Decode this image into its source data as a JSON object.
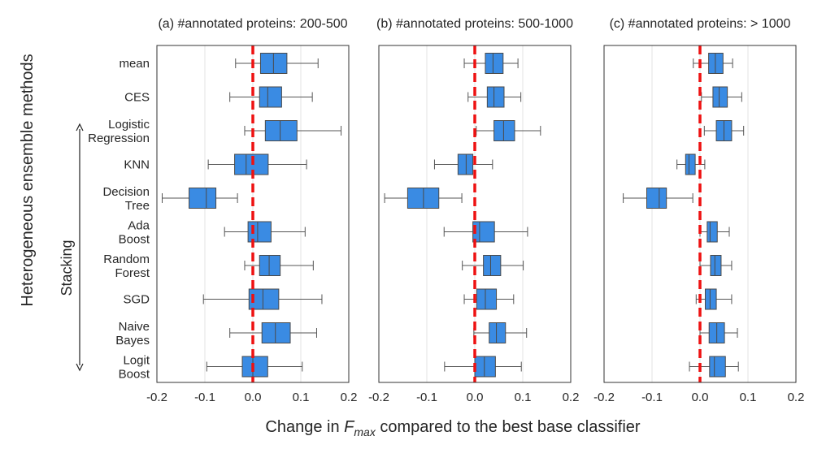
{
  "chart_data": {
    "type": "box",
    "colors": {
      "box": "#3a8be3",
      "reference_line": "#ee1111"
    },
    "ylabel": "Heterogeneous ensemble methods",
    "xlabel": {
      "pre": "Change in ",
      "var": "F",
      "sub": "max",
      "post": " compared to the best base classifier"
    },
    "group_label": "Stacking",
    "categories": [
      [
        "mean"
      ],
      [
        "CES"
      ],
      [
        "Logistic",
        "Regression"
      ],
      [
        "KNN"
      ],
      [
        "Decision",
        "Tree"
      ],
      [
        "Ada",
        "Boost"
      ],
      [
        "Random",
        "Forest"
      ],
      [
        "SGD"
      ],
      [
        "Naive",
        "Bayes"
      ],
      [
        "Logit",
        "Boost"
      ]
    ],
    "xlim": [
      -0.2,
      0.2
    ],
    "xticks": [
      -0.2,
      -0.1,
      0.0,
      0.1,
      0.2
    ],
    "xtick_labels": [
      "-0.2",
      "-0.1",
      "0.0",
      "0.1",
      "0.2"
    ],
    "reference_x": 0.0,
    "grid": "vertical",
    "panels": [
      {
        "title": "(a) #annotated proteins: 200-500",
        "boxes": [
          {
            "min": -0.036,
            "q1": 0.016,
            "median": 0.043,
            "q3": 0.071,
            "max": 0.136
          },
          {
            "min": -0.048,
            "q1": 0.014,
            "median": 0.031,
            "q3": 0.06,
            "max": 0.124
          },
          {
            "min": -0.017,
            "q1": 0.026,
            "median": 0.057,
            "q3": 0.092,
            "max": 0.184
          },
          {
            "min": -0.093,
            "q1": -0.038,
            "median": -0.014,
            "q3": 0.032,
            "max": 0.112
          },
          {
            "min": -0.189,
            "q1": -0.133,
            "median": -0.097,
            "q3": -0.077,
            "max": -0.032
          },
          {
            "min": -0.059,
            "q1": -0.01,
            "median": 0.01,
            "q3": 0.038,
            "max": 0.109
          },
          {
            "min": -0.017,
            "q1": 0.014,
            "median": 0.034,
            "q3": 0.057,
            "max": 0.126
          },
          {
            "min": -0.103,
            "q1": -0.008,
            "median": 0.021,
            "q3": 0.054,
            "max": 0.144
          },
          {
            "min": -0.048,
            "q1": 0.019,
            "median": 0.047,
            "q3": 0.078,
            "max": 0.133
          },
          {
            "min": -0.096,
            "q1": -0.022,
            "median": 0.0,
            "q3": 0.031,
            "max": 0.103
          }
        ]
      },
      {
        "title": "(b) #annotated proteins: 500-1000",
        "boxes": [
          {
            "min": -0.022,
            "q1": 0.022,
            "median": 0.038,
            "q3": 0.059,
            "max": 0.09
          },
          {
            "min": -0.014,
            "q1": 0.026,
            "median": 0.04,
            "q3": 0.061,
            "max": 0.096
          },
          {
            "min": 0.003,
            "q1": 0.04,
            "median": 0.06,
            "q3": 0.083,
            "max": 0.137
          },
          {
            "min": -0.084,
            "q1": -0.035,
            "median": -0.018,
            "q3": -0.004,
            "max": 0.037
          },
          {
            "min": -0.188,
            "q1": -0.14,
            "median": -0.107,
            "q3": -0.075,
            "max": -0.027
          },
          {
            "min": -0.064,
            "q1": -0.004,
            "median": 0.01,
            "q3": 0.041,
            "max": 0.11
          },
          {
            "min": -0.026,
            "q1": 0.018,
            "median": 0.033,
            "q3": 0.054,
            "max": 0.101
          },
          {
            "min": -0.022,
            "q1": 0.004,
            "median": 0.022,
            "q3": 0.045,
            "max": 0.081
          },
          {
            "min": -0.002,
            "q1": 0.03,
            "median": 0.045,
            "q3": 0.064,
            "max": 0.108
          },
          {
            "min": -0.063,
            "q1": 0.0,
            "median": 0.02,
            "q3": 0.043,
            "max": 0.097
          }
        ]
      },
      {
        "title": "(c) #annotated proteins: > 1000",
        "boxes": [
          {
            "min": -0.014,
            "q1": 0.018,
            "median": 0.032,
            "q3": 0.048,
            "max": 0.068
          },
          {
            "min": 0.003,
            "q1": 0.027,
            "median": 0.04,
            "q3": 0.057,
            "max": 0.087
          },
          {
            "min": 0.009,
            "q1": 0.034,
            "median": 0.05,
            "q3": 0.066,
            "max": 0.091
          },
          {
            "min": -0.048,
            "q1": -0.03,
            "median": -0.023,
            "q3": -0.01,
            "max": 0.01
          },
          {
            "min": -0.16,
            "q1": -0.111,
            "median": -0.085,
            "q3": -0.07,
            "max": -0.015
          },
          {
            "min": 0.0,
            "q1": 0.015,
            "median": 0.021,
            "q3": 0.036,
            "max": 0.061
          },
          {
            "min": 0.0,
            "q1": 0.022,
            "median": 0.031,
            "q3": 0.044,
            "max": 0.066
          },
          {
            "min": -0.008,
            "q1": 0.011,
            "median": 0.021,
            "q3": 0.034,
            "max": 0.066
          },
          {
            "min": 0.0,
            "q1": 0.019,
            "median": 0.035,
            "q3": 0.051,
            "max": 0.078
          },
          {
            "min": -0.022,
            "q1": 0.02,
            "median": 0.03,
            "q3": 0.053,
            "max": 0.08
          }
        ]
      }
    ]
  }
}
